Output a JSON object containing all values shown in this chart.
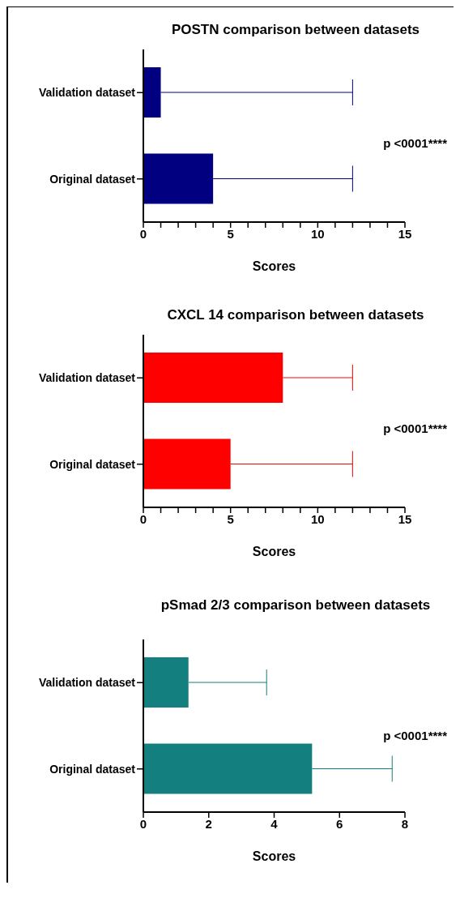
{
  "chart_data": [
    {
      "type": "bar",
      "orientation": "horizontal",
      "title": "POSTN comparison between datasets",
      "xlabel": "Scores",
      "categories": [
        "Validation dataset",
        "Original dataset"
      ],
      "values": [
        1,
        4
      ],
      "errors": [
        [
          1,
          12
        ],
        [
          4,
          12
        ]
      ],
      "color": "#000080",
      "xlim": [
        0,
        15
      ],
      "xticks": [
        0,
        {
          "value": 1,
          "label": null
        },
        {
          "value": 2,
          "label": null
        },
        {
          "value": 3,
          "label": null
        },
        {
          "value": 4,
          "label": null
        },
        5,
        {
          "value": 6,
          "label": null
        },
        {
          "value": 7,
          "label": null
        },
        {
          "value": 8,
          "label": null
        },
        {
          "value": 9,
          "label": null
        },
        10,
        {
          "value": 11,
          "label": null
        },
        {
          "value": 12,
          "label": null
        },
        {
          "value": 13,
          "label": null
        },
        {
          "value": 14,
          "label": null
        },
        15
      ],
      "annotations": [
        "p <0001****"
      ],
      "grid": false,
      "legend": false
    },
    {
      "type": "bar",
      "orientation": "horizontal",
      "title": "CXCL 14 comparison between datasets",
      "xlabel": "Scores",
      "categories": [
        "Validation dataset",
        "Original dataset"
      ],
      "values": [
        8,
        5
      ],
      "errors": [
        [
          8,
          12
        ],
        [
          5,
          12
        ]
      ],
      "color": "#ff0000",
      "xlim": [
        0,
        15
      ],
      "xticks": [
        0,
        {
          "value": 1,
          "label": null
        },
        {
          "value": 2,
          "label": null
        },
        {
          "value": 3,
          "label": null
        },
        {
          "value": 4,
          "label": null
        },
        5,
        {
          "value": 6,
          "label": null
        },
        {
          "value": 7,
          "label": null
        },
        {
          "value": 8,
          "label": null
        },
        {
          "value": 9,
          "label": null
        },
        10,
        {
          "value": 11,
          "label": null
        },
        {
          "value": 12,
          "label": null
        },
        {
          "value": 13,
          "label": null
        },
        {
          "value": 14,
          "label": null
        },
        15
      ],
      "annotations": [
        "p <0001****"
      ],
      "grid": false,
      "legend": false
    },
    {
      "type": "bar",
      "orientation": "horizontal",
      "title": "pSmad 2/3 comparison between datasets",
      "xlabel": "Scores",
      "categories": [
        "Validation dataset",
        "Original dataset"
      ],
      "values": [
        1.38,
        5.16
      ],
      "errors": [
        [
          1.38,
          3.77
        ],
        [
          5.16,
          7.61
        ]
      ],
      "color": "#147f7f",
      "xlim": [
        0,
        8
      ],
      "xticks": [
        0,
        2,
        4,
        6,
        8
      ],
      "annotations": [
        "p <0001****"
      ],
      "grid": false,
      "legend": false
    }
  ]
}
